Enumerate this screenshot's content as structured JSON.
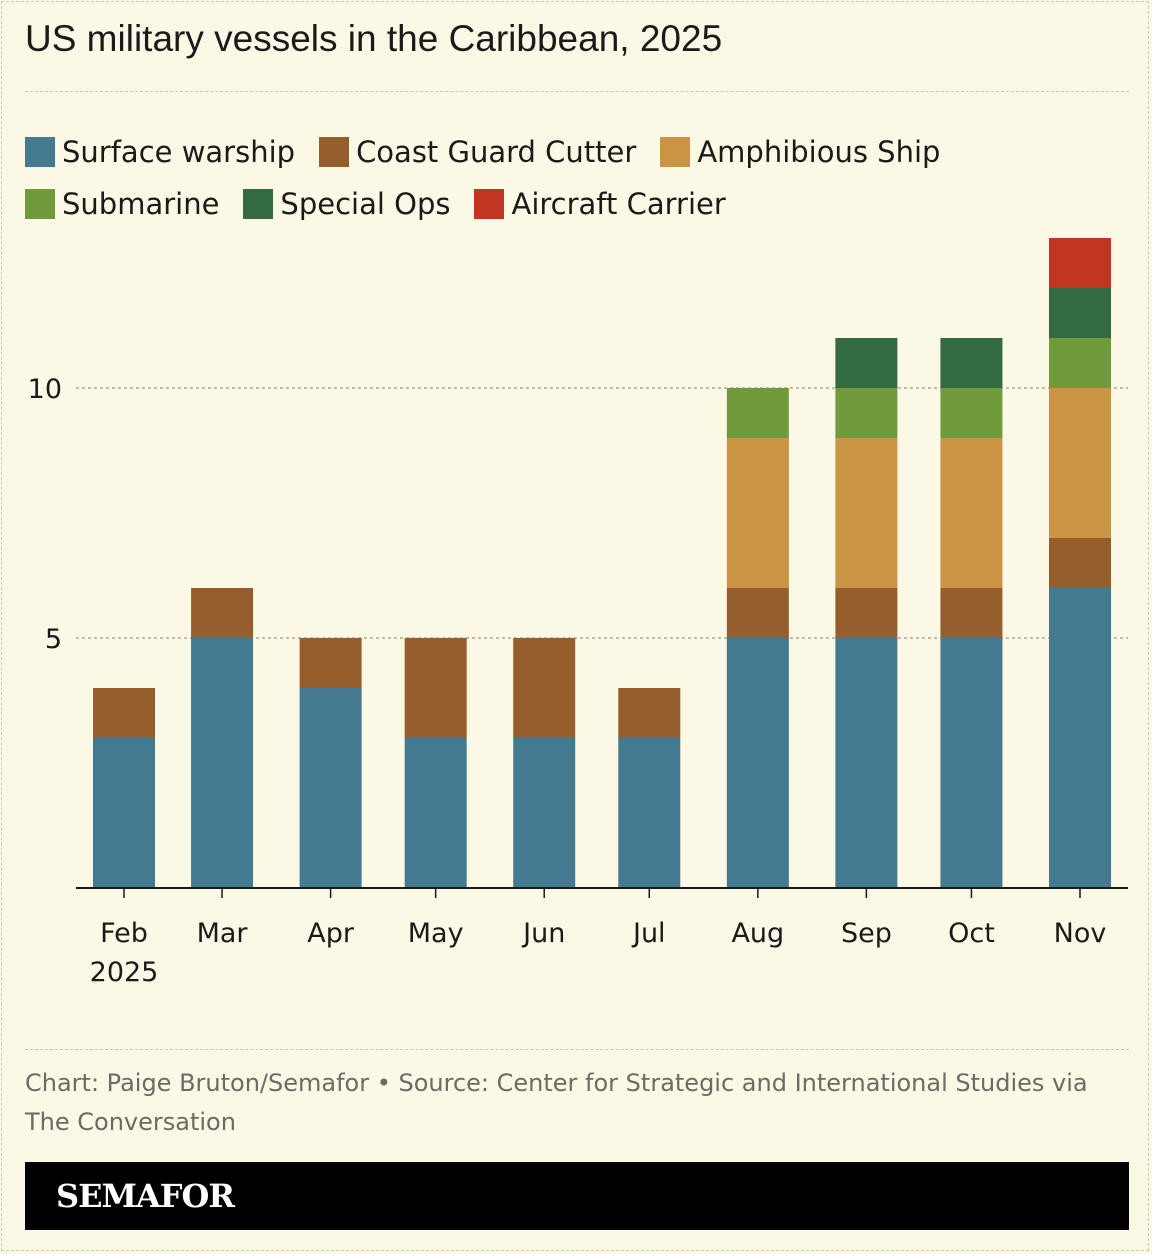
{
  "title": "US military vessels in the Caribbean, 2025",
  "source": "Chart: Paige Bruton/Semafor • Source: Center for Strategic and International Studies via The Conversation",
  "logo": "SEMAFOR",
  "chart_data": {
    "type": "bar",
    "stacked": true,
    "title": "US military vessels in the Caribbean, 2025",
    "categories": [
      "Feb",
      "Mar",
      "Apr",
      "May",
      "Jun",
      "Jul",
      "Aug",
      "Sep",
      "Oct",
      "Nov"
    ],
    "category_dates": [
      "2025-02-01",
      "2025-03-01",
      "2025-04-01",
      "2025-05-01",
      "2025-06-01",
      "2025-07-01",
      "2025-08-01",
      "2025-09-01",
      "2025-10-01",
      "2025-11-01"
    ],
    "year_label": "2025",
    "yticks": [
      5,
      10
    ],
    "ylim": [
      0,
      13
    ],
    "grid": true,
    "legend_placement": "top",
    "series": [
      {
        "name": "Surface warship",
        "color": "#447a8f",
        "values": [
          3,
          5,
          4,
          3,
          3,
          3,
          5,
          5,
          5,
          6
        ]
      },
      {
        "name": "Coast Guard Cutter",
        "color": "#965e2c",
        "values": [
          1,
          1,
          1,
          2,
          2,
          1,
          1,
          1,
          1,
          1
        ]
      },
      {
        "name": "Amphibious Ship",
        "color": "#c99443",
        "values": [
          0,
          0,
          0,
          0,
          0,
          0,
          3,
          3,
          3,
          3
        ]
      },
      {
        "name": "Submarine",
        "color": "#6f9b3d",
        "values": [
          0,
          0,
          0,
          0,
          0,
          0,
          1,
          1,
          1,
          1
        ]
      },
      {
        "name": "Special Ops",
        "color": "#336a40",
        "values": [
          0,
          0,
          0,
          0,
          0,
          0,
          0,
          1,
          1,
          1
        ]
      },
      {
        "name": "Aircraft Carrier",
        "color": "#c03623",
        "values": [
          0,
          0,
          0,
          0,
          0,
          0,
          0,
          0,
          0,
          1
        ]
      }
    ]
  }
}
